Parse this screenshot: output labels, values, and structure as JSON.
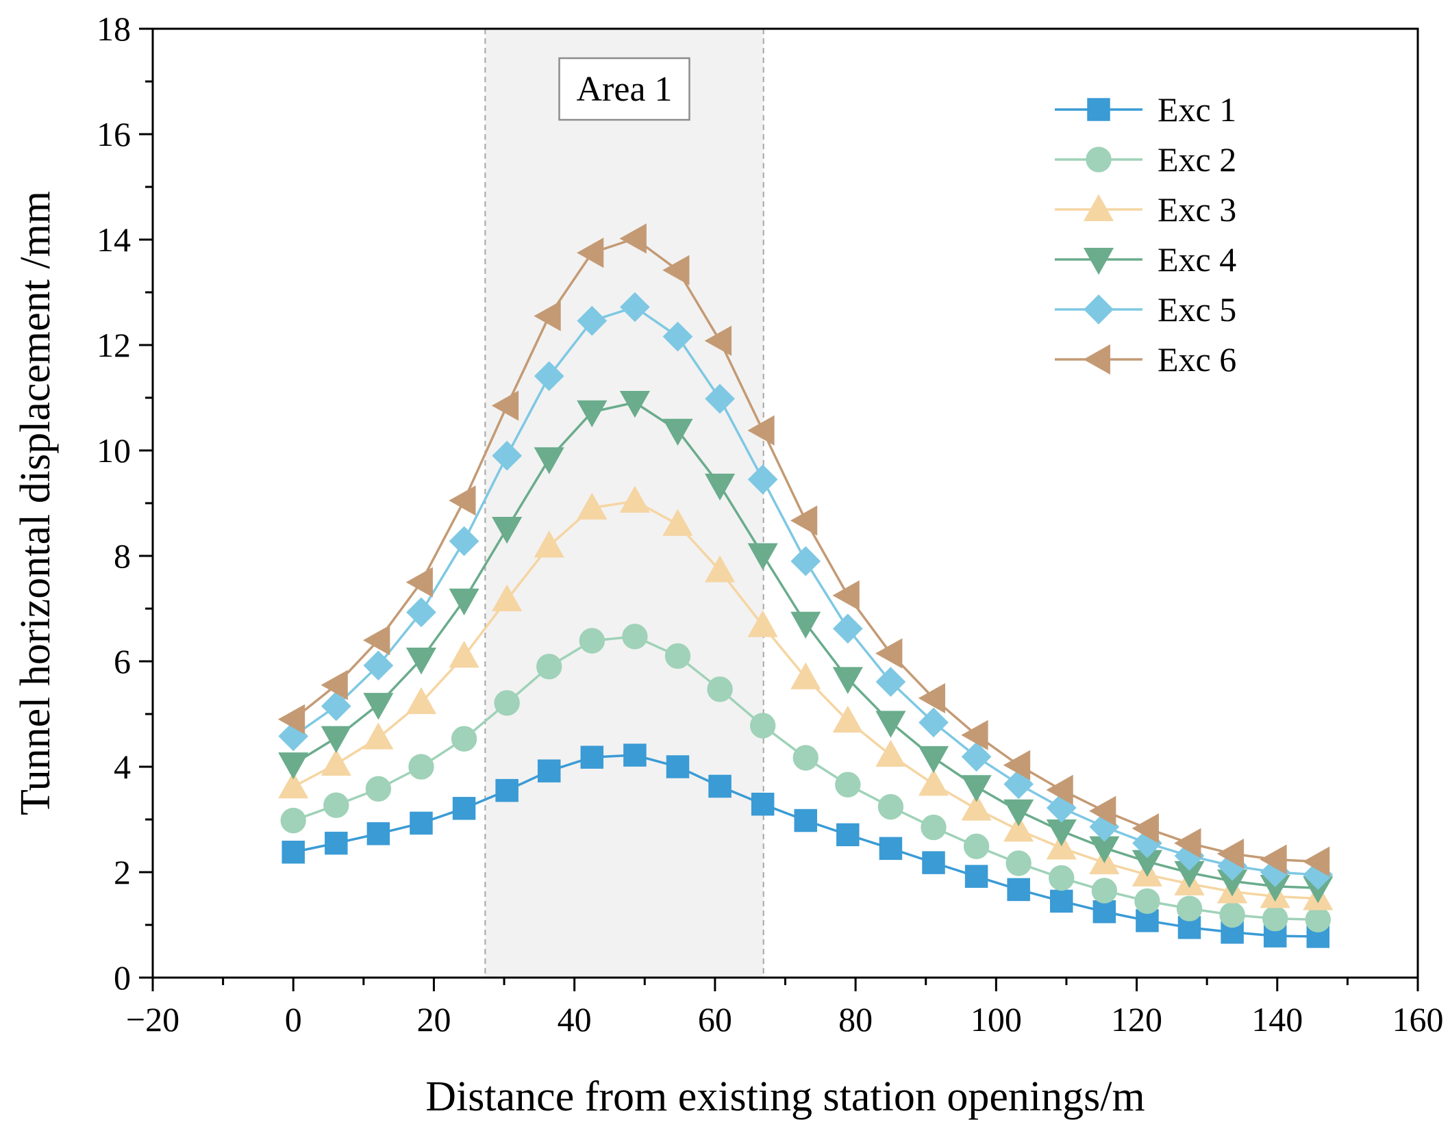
{
  "chart_data": {
    "type": "line",
    "title": "",
    "xlabel": "Distance from existing station openings/m",
    "ylabel": "Tunnel horizontal displacement /mm",
    "xlim": [
      -20,
      160
    ],
    "ylim": [
      0,
      18
    ],
    "x_ticks": [
      "−20",
      "0",
      "20",
      "40",
      "60",
      "80",
      "100",
      "120",
      "140",
      "160"
    ],
    "y_ticks": [
      "0",
      "2",
      "4",
      "6",
      "8",
      "10",
      "12",
      "14",
      "16",
      "18"
    ],
    "grid": false,
    "legend_position": "top-right",
    "shaded_region": {
      "x_range": [
        27.3,
        66.9
      ],
      "label": "Area 1",
      "color": "#f2f2f2"
    },
    "x": [
      0,
      6.1,
      12.1,
      18.2,
      24.3,
      30.4,
      36.4,
      42.5,
      48.6,
      54.7,
      60.7,
      66.8,
      72.9,
      78.9,
      85,
      91.1,
      97.2,
      103.2,
      109.3,
      115.4,
      121.5,
      127.5,
      133.6,
      139.7,
      145.8
    ],
    "series": [
      {
        "name": "Exc 1",
        "marker": "square",
        "color": "#3a9bd5",
        "values": [
          2.38,
          2.55,
          2.73,
          2.93,
          3.21,
          3.55,
          3.92,
          4.18,
          4.22,
          4.0,
          3.63,
          3.29,
          2.98,
          2.71,
          2.45,
          2.18,
          1.92,
          1.67,
          1.45,
          1.25,
          1.08,
          0.95,
          0.86,
          0.79,
          0.78
        ]
      },
      {
        "name": "Exc 2",
        "marker": "circle",
        "color": "#9fd2b8",
        "values": [
          2.98,
          3.27,
          3.58,
          4.0,
          4.53,
          5.21,
          5.9,
          6.39,
          6.47,
          6.1,
          5.47,
          4.78,
          4.17,
          3.66,
          3.24,
          2.85,
          2.49,
          2.17,
          1.89,
          1.65,
          1.45,
          1.31,
          1.19,
          1.12,
          1.1
        ]
      },
      {
        "name": "Exc 3",
        "marker": "triangle-up",
        "color": "#f5d5a2",
        "values": [
          3.62,
          4.05,
          4.55,
          5.22,
          6.1,
          7.17,
          8.19,
          8.91,
          9.04,
          8.6,
          7.72,
          6.68,
          5.69,
          4.87,
          4.22,
          3.67,
          3.2,
          2.8,
          2.46,
          2.18,
          1.95,
          1.78,
          1.63,
          1.54,
          1.5
        ]
      },
      {
        "name": "Exc 4",
        "marker": "triangle-down",
        "color": "#6aac8c",
        "values": [
          4.05,
          4.55,
          5.18,
          6.04,
          7.16,
          8.52,
          9.84,
          10.73,
          10.91,
          10.38,
          9.34,
          8.02,
          6.72,
          5.67,
          4.84,
          4.17,
          3.62,
          3.16,
          2.78,
          2.46,
          2.2,
          1.99,
          1.83,
          1.73,
          1.7
        ]
      },
      {
        "name": "Exc 5",
        "marker": "diamond",
        "color": "#7ec8e3",
        "values": [
          4.58,
          5.15,
          5.92,
          6.93,
          8.28,
          9.9,
          11.41,
          12.46,
          12.72,
          12.16,
          10.98,
          9.45,
          7.9,
          6.62,
          5.61,
          4.84,
          4.19,
          3.67,
          3.22,
          2.86,
          2.55,
          2.31,
          2.12,
          2.0,
          1.95
        ]
      },
      {
        "name": "Exc 6",
        "marker": "triangle-left",
        "color": "#c49a74",
        "values": [
          4.9,
          5.55,
          6.4,
          7.5,
          9.05,
          10.85,
          12.55,
          13.75,
          14.02,
          13.42,
          12.08,
          10.38,
          8.67,
          7.25,
          6.15,
          5.3,
          4.6,
          4.03,
          3.56,
          3.16,
          2.83,
          2.55,
          2.35,
          2.24,
          2.2
        ]
      }
    ]
  }
}
